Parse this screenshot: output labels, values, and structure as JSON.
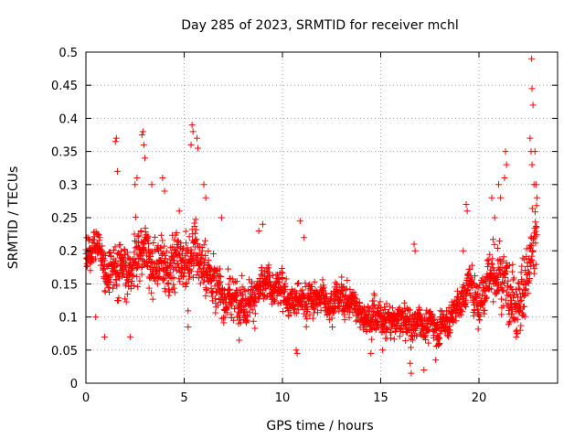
{
  "chart_data": {
    "type": "scatter",
    "title": "Day 285 of 2023, SRMTID for receiver mchl",
    "xlabel": "GPS time / hours",
    "ylabel": "SRMTID / TECUs",
    "xlim": [
      0,
      24
    ],
    "ylim": [
      0,
      0.5
    ],
    "x_ticks": [
      0,
      5,
      10,
      15,
      20
    ],
    "x_tick_labels": [
      "0",
      "5",
      "10",
      "15",
      "20"
    ],
    "y_ticks": [
      0,
      0.05,
      0.1,
      0.15,
      0.2,
      0.25,
      0.3,
      0.35,
      0.4,
      0.45,
      0.5
    ],
    "y_tick_labels": [
      "0",
      "0.05",
      "0.1",
      "0.15",
      "0.2",
      "0.25",
      "0.3",
      "0.35",
      "0.4",
      "0.45",
      "0.5"
    ],
    "grid": true,
    "marker": "+",
    "series": [
      {
        "name": "SRMTID",
        "color": "#ff0000",
        "trend": {
          "hours": [
            0,
            0.5,
            1,
            1.5,
            2,
            2.5,
            3,
            3.5,
            4,
            4.5,
            5,
            5.5,
            6,
            6.5,
            7,
            7.5,
            8,
            9,
            10,
            11,
            12,
            13,
            14,
            15,
            16,
            17,
            18,
            18.5,
            19,
            19.5,
            20,
            20.5,
            21,
            21.5,
            22,
            22.5,
            23
          ],
          "srmtid": [
            0.19,
            0.2,
            0.18,
            0.17,
            0.18,
            0.19,
            0.2,
            0.19,
            0.18,
            0.17,
            0.17,
            0.2,
            0.18,
            0.16,
            0.13,
            0.12,
            0.13,
            0.14,
            0.14,
            0.13,
            0.13,
            0.13,
            0.11,
            0.1,
            0.09,
            0.09,
            0.09,
            0.1,
            0.12,
            0.15,
            0.12,
            0.17,
            0.16,
            0.16,
            0.12,
            0.17,
            0.22
          ]
        },
        "spread": {
          "hours": [
            0,
            1,
            2,
            3,
            5,
            6,
            8,
            12,
            15,
            18,
            19,
            21,
            22,
            23
          ],
          "half_range": [
            0.04,
            0.07,
            0.09,
            0.09,
            0.1,
            0.09,
            0.06,
            0.05,
            0.05,
            0.04,
            0.05,
            0.09,
            0.1,
            0.11
          ]
        },
        "extremes": [
          {
            "x": 1.55,
            "y": 0.37
          },
          {
            "x": 1.5,
            "y": 0.365
          },
          {
            "x": 1.6,
            "y": 0.32
          },
          {
            "x": 2.9,
            "y": 0.38
          },
          {
            "x": 2.85,
            "y": 0.375
          },
          {
            "x": 2.95,
            "y": 0.36
          },
          {
            "x": 3.0,
            "y": 0.34
          },
          {
            "x": 2.6,
            "y": 0.31
          },
          {
            "x": 2.5,
            "y": 0.3
          },
          {
            "x": 3.35,
            "y": 0.3
          },
          {
            "x": 3.9,
            "y": 0.31
          },
          {
            "x": 4.0,
            "y": 0.29
          },
          {
            "x": 5.4,
            "y": 0.39
          },
          {
            "x": 5.45,
            "y": 0.38
          },
          {
            "x": 5.35,
            "y": 0.36
          },
          {
            "x": 5.65,
            "y": 0.37
          },
          {
            "x": 5.7,
            "y": 0.355
          },
          {
            "x": 6.0,
            "y": 0.3
          },
          {
            "x": 6.1,
            "y": 0.28
          },
          {
            "x": 6.9,
            "y": 0.25
          },
          {
            "x": 4.75,
            "y": 0.26
          },
          {
            "x": 0.1,
            "y": 0.22
          },
          {
            "x": 0.5,
            "y": 0.1
          },
          {
            "x": 0.95,
            "y": 0.07
          },
          {
            "x": 2.25,
            "y": 0.07
          },
          {
            "x": 5.2,
            "y": 0.085
          },
          {
            "x": 7.8,
            "y": 0.065
          },
          {
            "x": 9.0,
            "y": 0.24
          },
          {
            "x": 8.8,
            "y": 0.23
          },
          {
            "x": 10.9,
            "y": 0.245
          },
          {
            "x": 11.1,
            "y": 0.22
          },
          {
            "x": 10.7,
            "y": 0.05
          },
          {
            "x": 10.75,
            "y": 0.045
          },
          {
            "x": 14.5,
            "y": 0.045
          },
          {
            "x": 15.1,
            "y": 0.05
          },
          {
            "x": 16.5,
            "y": 0.03
          },
          {
            "x": 16.55,
            "y": 0.015
          },
          {
            "x": 17.2,
            "y": 0.02
          },
          {
            "x": 17.8,
            "y": 0.035
          },
          {
            "x": 16.7,
            "y": 0.21
          },
          {
            "x": 16.75,
            "y": 0.2
          },
          {
            "x": 19.35,
            "y": 0.27
          },
          {
            "x": 19.4,
            "y": 0.26
          },
          {
            "x": 19.2,
            "y": 0.2
          },
          {
            "x": 20.65,
            "y": 0.28
          },
          {
            "x": 20.8,
            "y": 0.25
          },
          {
            "x": 21.0,
            "y": 0.3
          },
          {
            "x": 21.1,
            "y": 0.28
          },
          {
            "x": 21.35,
            "y": 0.35
          },
          {
            "x": 21.4,
            "y": 0.33
          },
          {
            "x": 21.3,
            "y": 0.31
          },
          {
            "x": 21.9,
            "y": 0.07
          },
          {
            "x": 22.1,
            "y": 0.08
          },
          {
            "x": 22.6,
            "y": 0.37
          },
          {
            "x": 22.65,
            "y": 0.35
          },
          {
            "x": 22.7,
            "y": 0.33
          },
          {
            "x": 22.8,
            "y": 0.3
          },
          {
            "x": 22.9,
            "y": 0.3
          },
          {
            "x": 22.95,
            "y": 0.28
          },
          {
            "x": 22.75,
            "y": 0.42
          },
          {
            "x": 22.7,
            "y": 0.445
          },
          {
            "x": 22.68,
            "y": 0.49
          },
          {
            "x": 22.85,
            "y": 0.35
          }
        ]
      }
    ]
  }
}
